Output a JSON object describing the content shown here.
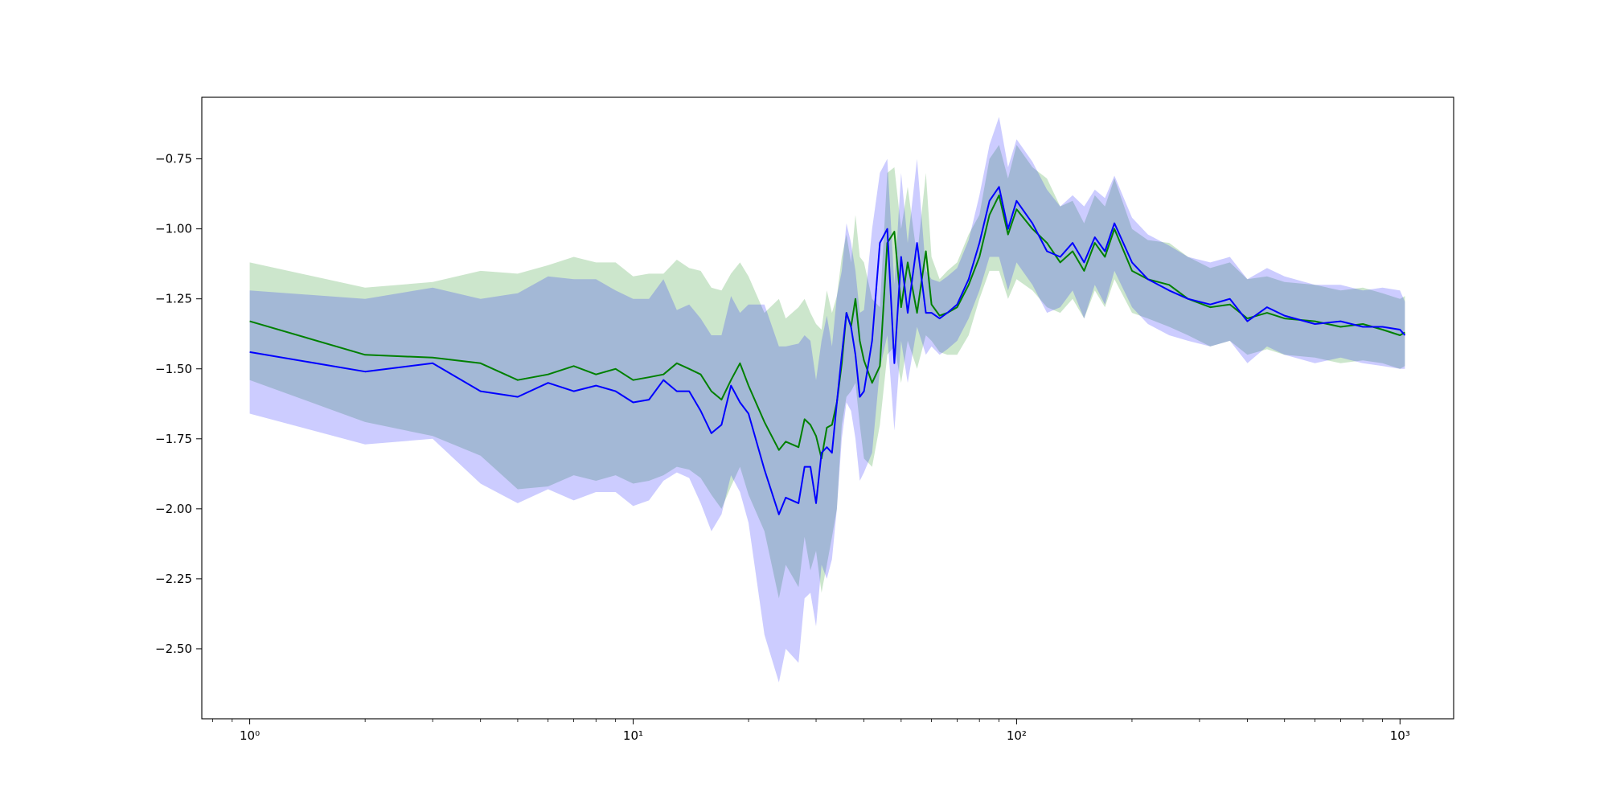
{
  "chart_data": {
    "type": "line",
    "title": "",
    "xlabel": "",
    "ylabel": "",
    "xscale": "log",
    "xlim": [
      0.75,
      1380
    ],
    "ylim": [
      -2.75,
      -0.53
    ],
    "grid": false,
    "legend": "none",
    "x_ticks": [
      {
        "value": 1,
        "label": "10⁰"
      },
      {
        "value": 10,
        "label": "10¹"
      },
      {
        "value": 100,
        "label": "10²"
      },
      {
        "value": 1000,
        "label": "10³"
      }
    ],
    "y_ticks": [
      {
        "value": -0.75,
        "label": "−0.75"
      },
      {
        "value": -1.0,
        "label": "−1.00"
      },
      {
        "value": -1.25,
        "label": "−1.25"
      },
      {
        "value": -1.5,
        "label": "−1.50"
      },
      {
        "value": -1.75,
        "label": "−1.75"
      },
      {
        "value": -2.0,
        "label": "−2.00"
      },
      {
        "value": -2.25,
        "label": "−2.25"
      },
      {
        "value": -2.5,
        "label": "−2.50"
      }
    ],
    "series": [
      {
        "color": "#008000",
        "band_color": "#008000",
        "x": [
          1,
          2,
          3,
          4,
          5,
          6,
          7,
          8,
          9,
          10,
          11,
          12,
          13,
          14,
          15,
          16,
          17,
          18,
          19,
          20,
          22,
          24,
          25,
          27,
          28,
          29,
          30,
          31,
          32,
          33,
          34,
          35,
          36,
          37,
          38,
          39,
          40,
          42,
          44,
          46,
          48,
          50,
          52,
          55,
          58,
          60,
          63,
          66,
          70,
          75,
          80,
          85,
          90,
          95,
          100,
          110,
          120,
          130,
          140,
          150,
          160,
          170,
          180,
          200,
          220,
          250,
          280,
          320,
          360,
          400,
          450,
          500,
          600,
          700,
          800,
          900,
          1000,
          1030
        ],
        "y": [
          -1.33,
          -1.45,
          -1.46,
          -1.48,
          -1.54,
          -1.52,
          -1.49,
          -1.52,
          -1.5,
          -1.54,
          -1.53,
          -1.52,
          -1.48,
          -1.5,
          -1.52,
          -1.58,
          -1.61,
          -1.54,
          -1.48,
          -1.56,
          -1.69,
          -1.79,
          -1.76,
          -1.78,
          -1.68,
          -1.7,
          -1.74,
          -1.82,
          -1.71,
          -1.7,
          -1.62,
          -1.48,
          -1.3,
          -1.35,
          -1.25,
          -1.4,
          -1.47,
          -1.55,
          -1.49,
          -1.05,
          -1.01,
          -1.28,
          -1.12,
          -1.3,
          -1.08,
          -1.27,
          -1.31,
          -1.3,
          -1.28,
          -1.2,
          -1.1,
          -0.95,
          -0.88,
          -1.02,
          -0.93,
          -1.0,
          -1.05,
          -1.12,
          -1.08,
          -1.15,
          -1.05,
          -1.1,
          -1.0,
          -1.15,
          -1.18,
          -1.2,
          -1.25,
          -1.28,
          -1.27,
          -1.32,
          -1.3,
          -1.32,
          -1.33,
          -1.35,
          -1.34,
          -1.36,
          -1.38,
          -1.37
        ],
        "lower": [
          -1.54,
          -1.69,
          -1.74,
          -1.81,
          -1.93,
          -1.92,
          -1.88,
          -1.9,
          -1.88,
          -1.91,
          -1.9,
          -1.88,
          -1.85,
          -1.86,
          -1.89,
          -1.95,
          -2.0,
          -1.92,
          -1.85,
          -1.95,
          -2.08,
          -2.32,
          -2.2,
          -2.28,
          -2.1,
          -2.22,
          -2.15,
          -2.3,
          -2.2,
          -2.1,
          -2.0,
          -1.7,
          -1.6,
          -1.58,
          -1.55,
          -1.7,
          -1.82,
          -1.85,
          -1.7,
          -1.45,
          -1.42,
          -1.55,
          -1.4,
          -1.5,
          -1.38,
          -1.4,
          -1.44,
          -1.45,
          -1.45,
          -1.38,
          -1.25,
          -1.15,
          -1.15,
          -1.25,
          -1.18,
          -1.22,
          -1.28,
          -1.3,
          -1.25,
          -1.32,
          -1.22,
          -1.28,
          -1.18,
          -1.3,
          -1.32,
          -1.35,
          -1.38,
          -1.42,
          -1.4,
          -1.45,
          -1.43,
          -1.45,
          -1.46,
          -1.48,
          -1.47,
          -1.48,
          -1.5,
          -1.49
        ],
        "upper": [
          -1.12,
          -1.21,
          -1.19,
          -1.15,
          -1.16,
          -1.13,
          -1.1,
          -1.12,
          -1.12,
          -1.17,
          -1.16,
          -1.16,
          -1.11,
          -1.14,
          -1.15,
          -1.21,
          -1.22,
          -1.16,
          -1.12,
          -1.17,
          -1.3,
          -1.25,
          -1.32,
          -1.28,
          -1.25,
          -1.3,
          -1.34,
          -1.36,
          -1.22,
          -1.3,
          -1.24,
          -1.1,
          -1.02,
          -1.12,
          -0.95,
          -1.1,
          -1.12,
          -1.25,
          -1.28,
          -0.8,
          -0.78,
          -1.0,
          -0.85,
          -1.1,
          -0.8,
          -1.1,
          -1.18,
          -1.15,
          -1.12,
          -1.02,
          -0.95,
          -0.75,
          -0.7,
          -0.82,
          -0.7,
          -0.78,
          -0.82,
          -0.92,
          -0.9,
          -0.98,
          -0.88,
          -0.92,
          -0.82,
          -1.0,
          -1.04,
          -1.05,
          -1.1,
          -1.14,
          -1.12,
          -1.18,
          -1.17,
          -1.19,
          -1.2,
          -1.22,
          -1.21,
          -1.23,
          -1.25,
          -1.24
        ]
      },
      {
        "color": "#0000ff",
        "band_color": "#0000ff",
        "x": [
          1,
          2,
          3,
          4,
          5,
          6,
          7,
          8,
          9,
          10,
          11,
          12,
          13,
          14,
          15,
          16,
          17,
          18,
          19,
          20,
          22,
          24,
          25,
          27,
          28,
          29,
          30,
          31,
          32,
          33,
          34,
          35,
          36,
          37,
          38,
          39,
          40,
          42,
          44,
          46,
          48,
          50,
          52,
          55,
          58,
          60,
          63,
          66,
          70,
          75,
          80,
          85,
          90,
          95,
          100,
          110,
          120,
          130,
          140,
          150,
          160,
          170,
          180,
          200,
          220,
          250,
          280,
          320,
          360,
          400,
          450,
          500,
          600,
          700,
          800,
          900,
          1000,
          1030
        ],
        "y": [
          -1.44,
          -1.51,
          -1.48,
          -1.58,
          -1.6,
          -1.55,
          -1.58,
          -1.56,
          -1.58,
          -1.62,
          -1.61,
          -1.54,
          -1.58,
          -1.58,
          -1.65,
          -1.73,
          -1.7,
          -1.56,
          -1.62,
          -1.66,
          -1.86,
          -2.02,
          -1.96,
          -1.98,
          -1.85,
          -1.85,
          -1.98,
          -1.8,
          -1.78,
          -1.8,
          -1.62,
          -1.45,
          -1.3,
          -1.35,
          -1.45,
          -1.6,
          -1.58,
          -1.4,
          -1.05,
          -1.0,
          -1.48,
          -1.1,
          -1.3,
          -1.05,
          -1.3,
          -1.3,
          -1.32,
          -1.3,
          -1.27,
          -1.18,
          -1.05,
          -0.9,
          -0.85,
          -1.0,
          -0.9,
          -0.98,
          -1.08,
          -1.1,
          -1.05,
          -1.12,
          -1.03,
          -1.08,
          -0.98,
          -1.12,
          -1.18,
          -1.22,
          -1.25,
          -1.27,
          -1.25,
          -1.33,
          -1.28,
          -1.31,
          -1.34,
          -1.33,
          -1.35,
          -1.35,
          -1.36,
          -1.38
        ],
        "lower": [
          -1.66,
          -1.77,
          -1.75,
          -1.91,
          -1.98,
          -1.93,
          -1.97,
          -1.94,
          -1.94,
          -1.99,
          -1.97,
          -1.9,
          -1.87,
          -1.89,
          -1.98,
          -2.08,
          -2.02,
          -1.88,
          -1.94,
          -2.05,
          -2.45,
          -2.62,
          -2.5,
          -2.55,
          -2.32,
          -2.3,
          -2.42,
          -2.2,
          -2.25,
          -2.18,
          -2.0,
          -1.75,
          -1.62,
          -1.65,
          -1.75,
          -1.9,
          -1.87,
          -1.8,
          -1.5,
          -1.38,
          -1.72,
          -1.4,
          -1.55,
          -1.35,
          -1.45,
          -1.42,
          -1.45,
          -1.43,
          -1.4,
          -1.32,
          -1.22,
          -1.1,
          -1.1,
          -1.22,
          -1.12,
          -1.2,
          -1.3,
          -1.28,
          -1.22,
          -1.32,
          -1.2,
          -1.27,
          -1.15,
          -1.28,
          -1.34,
          -1.38,
          -1.4,
          -1.42,
          -1.4,
          -1.48,
          -1.42,
          -1.45,
          -1.48,
          -1.46,
          -1.48,
          -1.49,
          -1.5,
          -1.5
        ],
        "upper": [
          -1.22,
          -1.25,
          -1.21,
          -1.25,
          -1.23,
          -1.17,
          -1.18,
          -1.18,
          -1.22,
          -1.25,
          -1.25,
          -1.18,
          -1.29,
          -1.27,
          -1.32,
          -1.38,
          -1.38,
          -1.24,
          -1.3,
          -1.27,
          -1.27,
          -1.42,
          -1.42,
          -1.41,
          -1.38,
          -1.4,
          -1.54,
          -1.4,
          -1.31,
          -1.42,
          -1.24,
          -1.15,
          -0.98,
          -1.05,
          -1.15,
          -1.3,
          -1.29,
          -1.0,
          -0.8,
          -0.75,
          -1.2,
          -0.8,
          -1.05,
          -0.75,
          -1.15,
          -1.18,
          -1.19,
          -1.17,
          -1.14,
          -1.04,
          -0.88,
          -0.7,
          -0.6,
          -0.78,
          -0.68,
          -0.76,
          -0.86,
          -0.92,
          -0.88,
          -0.92,
          -0.86,
          -0.89,
          -0.81,
          -0.96,
          -1.02,
          -1.06,
          -1.1,
          -1.12,
          -1.1,
          -1.18,
          -1.14,
          -1.17,
          -1.2,
          -1.2,
          -1.22,
          -1.21,
          -1.22,
          -1.26
        ]
      }
    ]
  }
}
